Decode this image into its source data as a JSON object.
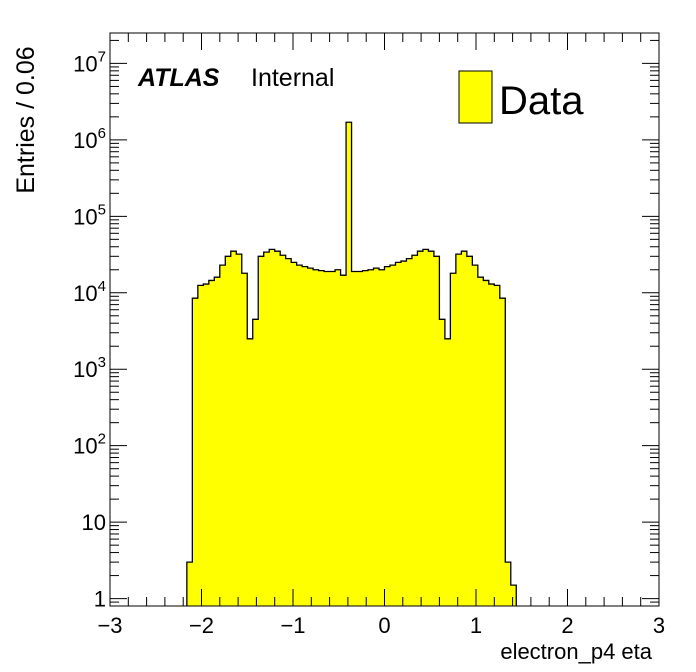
{
  "chart_data": {
    "type": "bar",
    "title": "",
    "xlabel": "electron_p4 eta",
    "ylabel": "Entries / 0.06",
    "xlim": [
      -3,
      3
    ],
    "ylim": [
      0.8,
      25000000
    ],
    "yscale": "log",
    "bin_width": 0.06,
    "x_ticks": [
      "−3",
      "−2",
      "−1",
      "0",
      "1",
      "2",
      "3"
    ],
    "y_ticks": [
      {
        "base": "1",
        "exp": ""
      },
      {
        "base": "10",
        "exp": ""
      },
      {
        "base": "10",
        "exp": "2"
      },
      {
        "base": "10",
        "exp": "3"
      },
      {
        "base": "10",
        "exp": "4"
      },
      {
        "base": "10",
        "exp": "5"
      },
      {
        "base": "10",
        "exp": "6"
      },
      {
        "base": "10",
        "exp": "7"
      }
    ],
    "atlas_label": "ATLAS",
    "atlas_sublabel": "Internal",
    "legend": {
      "position": "top-right",
      "entries": [
        "Data"
      ]
    },
    "series_color": "#ffff00",
    "series": [
      {
        "name": "Data",
        "bin_edges_start": -2.16,
        "values": [
          3,
          8500,
          12500,
          13000,
          14500,
          16000,
          23000,
          30000,
          35000,
          32000,
          18000,
          2500,
          4500,
          30000,
          34000,
          37000,
          35000,
          31000,
          28000,
          25000,
          23000,
          22000,
          21000,
          20000,
          19500,
          19000,
          19000,
          20000,
          17000,
          1700000,
          19000,
          19000,
          19500,
          20000,
          21000,
          20000,
          22000,
          23000,
          25000,
          26000,
          28000,
          31000,
          35000,
          37000,
          35000,
          30000,
          4500,
          2500,
          18000,
          32000,
          35000,
          30000,
          23000,
          16000,
          14500,
          13000,
          12500,
          8500,
          3,
          1.5
        ]
      }
    ]
  }
}
